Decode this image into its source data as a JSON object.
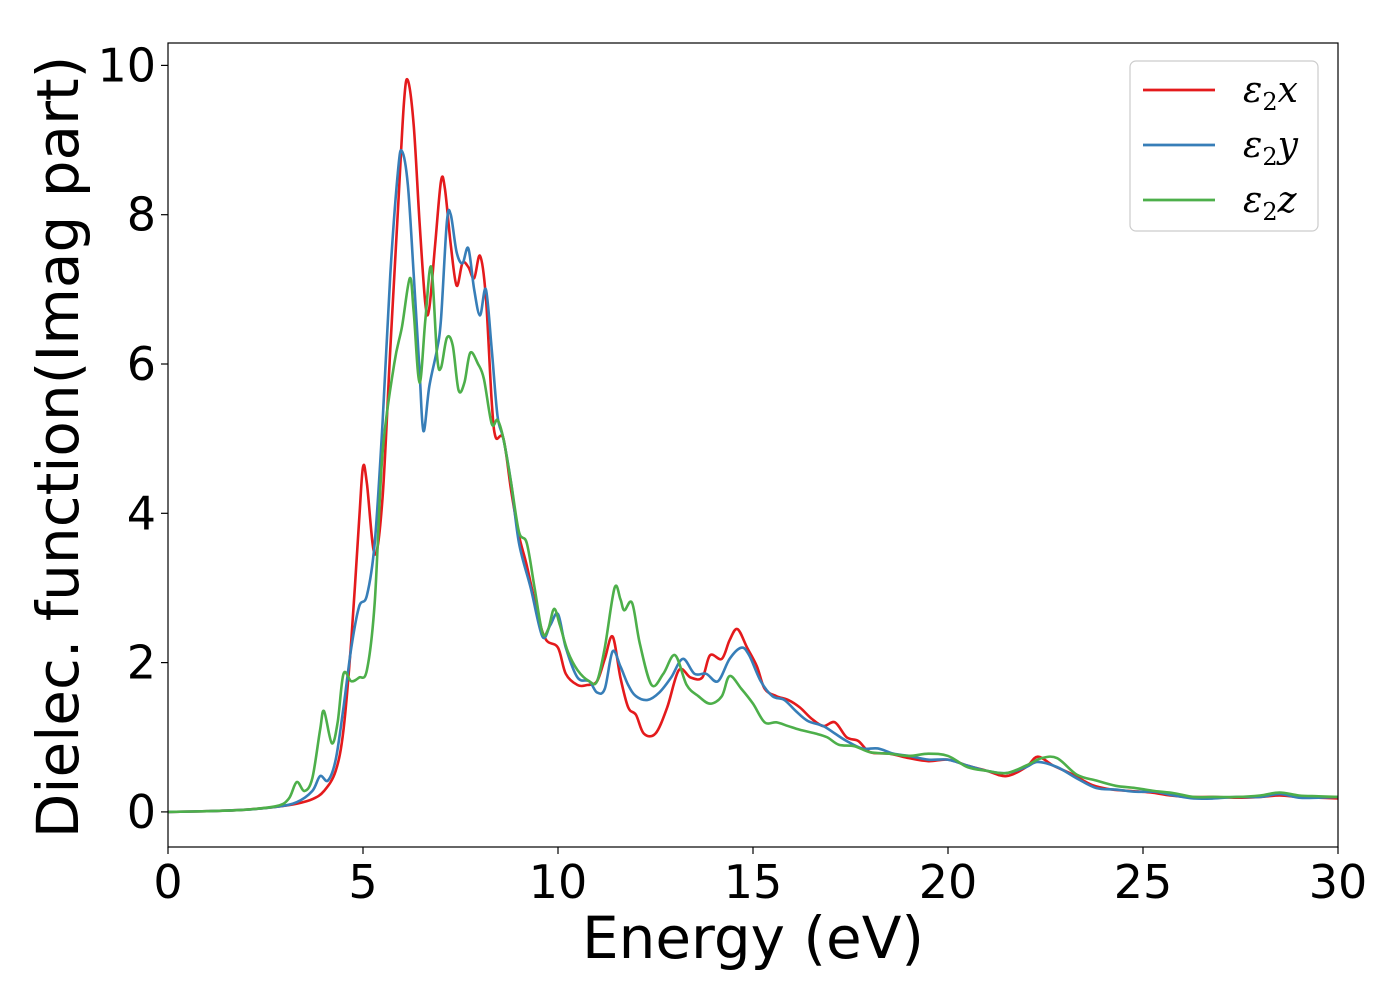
{
  "chart_data": {
    "type": "line",
    "title": "",
    "xlabel": "Energy (eV)",
    "ylabel": "Dielec. function(Imag part)",
    "xlim": [
      0,
      30
    ],
    "ylim": [
      -0.47,
      10.3
    ],
    "xticks": [
      0,
      5,
      10,
      15,
      20,
      25,
      30
    ],
    "yticks": [
      0,
      2,
      4,
      6,
      8,
      10
    ],
    "grid": false,
    "legend_position": "top-right",
    "series": [
      {
        "name": "ε₂x",
        "label_main": "ε",
        "label_sub": "2",
        "label_suffix": "x",
        "color": "#e41a1c",
        "points": [
          [
            0,
            0
          ],
          [
            1,
            0.01
          ],
          [
            2,
            0.03
          ],
          [
            2.8,
            0.07
          ],
          [
            3.3,
            0.11
          ],
          [
            3.7,
            0.17
          ],
          [
            4.0,
            0.28
          ],
          [
            4.3,
            0.55
          ],
          [
            4.5,
            1.1
          ],
          [
            4.7,
            2.3
          ],
          [
            4.9,
            3.9
          ],
          [
            5.0,
            4.62
          ],
          [
            5.1,
            4.4
          ],
          [
            5.3,
            3.45
          ],
          [
            5.5,
            4.2
          ],
          [
            5.7,
            6.2
          ],
          [
            5.9,
            8.1
          ],
          [
            6.05,
            9.5
          ],
          [
            6.15,
            9.8
          ],
          [
            6.3,
            9.2
          ],
          [
            6.45,
            7.9
          ],
          [
            6.6,
            6.8
          ],
          [
            6.7,
            6.75
          ],
          [
            6.85,
            7.6
          ],
          [
            7.0,
            8.45
          ],
          [
            7.1,
            8.35
          ],
          [
            7.25,
            7.6
          ],
          [
            7.4,
            7.05
          ],
          [
            7.55,
            7.35
          ],
          [
            7.7,
            7.3
          ],
          [
            7.85,
            7.15
          ],
          [
            8.0,
            7.45
          ],
          [
            8.15,
            6.9
          ],
          [
            8.3,
            5.5
          ],
          [
            8.4,
            5.02
          ],
          [
            8.6,
            5.0
          ],
          [
            8.8,
            4.3
          ],
          [
            9.0,
            3.7
          ],
          [
            9.2,
            3.3
          ],
          [
            9.5,
            2.6
          ],
          [
            9.7,
            2.3
          ],
          [
            10.0,
            2.2
          ],
          [
            10.2,
            1.85
          ],
          [
            10.5,
            1.7
          ],
          [
            10.75,
            1.7
          ],
          [
            11.0,
            1.75
          ],
          [
            11.2,
            2.05
          ],
          [
            11.4,
            2.35
          ],
          [
            11.6,
            1.8
          ],
          [
            11.8,
            1.4
          ],
          [
            12.0,
            1.3
          ],
          [
            12.2,
            1.05
          ],
          [
            12.5,
            1.05
          ],
          [
            12.8,
            1.4
          ],
          [
            13.1,
            1.9
          ],
          [
            13.4,
            1.8
          ],
          [
            13.7,
            1.8
          ],
          [
            13.9,
            2.1
          ],
          [
            14.2,
            2.05
          ],
          [
            14.4,
            2.3
          ],
          [
            14.6,
            2.45
          ],
          [
            14.85,
            2.2
          ],
          [
            15.1,
            1.95
          ],
          [
            15.3,
            1.65
          ],
          [
            15.6,
            1.55
          ],
          [
            15.9,
            1.5
          ],
          [
            16.2,
            1.4
          ],
          [
            16.5,
            1.25
          ],
          [
            16.8,
            1.15
          ],
          [
            17.1,
            1.2
          ],
          [
            17.4,
            1.0
          ],
          [
            17.7,
            0.95
          ],
          [
            18.0,
            0.8
          ],
          [
            18.5,
            0.78
          ],
          [
            19.0,
            0.72
          ],
          [
            19.5,
            0.68
          ],
          [
            20.0,
            0.7
          ],
          [
            20.5,
            0.62
          ],
          [
            21.0,
            0.55
          ],
          [
            21.5,
            0.48
          ],
          [
            22.0,
            0.6
          ],
          [
            22.3,
            0.74
          ],
          [
            22.7,
            0.62
          ],
          [
            23.2,
            0.5
          ],
          [
            23.7,
            0.36
          ],
          [
            24.2,
            0.3
          ],
          [
            24.7,
            0.28
          ],
          [
            25.2,
            0.26
          ],
          [
            25.7,
            0.22
          ],
          [
            26.2,
            0.2
          ],
          [
            26.8,
            0.2
          ],
          [
            27.4,
            0.19
          ],
          [
            28.0,
            0.2
          ],
          [
            28.5,
            0.22
          ],
          [
            29.0,
            0.2
          ],
          [
            29.5,
            0.19
          ],
          [
            30.0,
            0.18
          ]
        ]
      },
      {
        "name": "ε₂y",
        "label_main": "ε",
        "label_sub": "2",
        "label_suffix": "y",
        "color": "#377eb8",
        "points": [
          [
            0,
            0
          ],
          [
            1,
            0.01
          ],
          [
            2,
            0.03
          ],
          [
            2.8,
            0.07
          ],
          [
            3.3,
            0.13
          ],
          [
            3.7,
            0.28
          ],
          [
            3.9,
            0.48
          ],
          [
            4.1,
            0.42
          ],
          [
            4.3,
            0.7
          ],
          [
            4.5,
            1.4
          ],
          [
            4.7,
            2.2
          ],
          [
            4.9,
            2.75
          ],
          [
            5.1,
            2.9
          ],
          [
            5.3,
            3.6
          ],
          [
            5.5,
            5.2
          ],
          [
            5.7,
            7.2
          ],
          [
            5.9,
            8.6
          ],
          [
            6.0,
            8.85
          ],
          [
            6.15,
            8.4
          ],
          [
            6.3,
            7.2
          ],
          [
            6.45,
            5.9
          ],
          [
            6.55,
            5.1
          ],
          [
            6.7,
            5.7
          ],
          [
            6.9,
            6.2
          ],
          [
            7.0,
            6.6
          ],
          [
            7.15,
            7.9
          ],
          [
            7.25,
            8.0
          ],
          [
            7.4,
            7.5
          ],
          [
            7.55,
            7.35
          ],
          [
            7.7,
            7.55
          ],
          [
            7.85,
            7.0
          ],
          [
            8.0,
            6.65
          ],
          [
            8.15,
            7.0
          ],
          [
            8.3,
            6.2
          ],
          [
            8.45,
            5.3
          ],
          [
            8.6,
            5.0
          ],
          [
            8.8,
            4.4
          ],
          [
            9.0,
            3.6
          ],
          [
            9.3,
            3.0
          ],
          [
            9.6,
            2.35
          ],
          [
            9.8,
            2.5
          ],
          [
            10.0,
            2.65
          ],
          [
            10.2,
            2.2
          ],
          [
            10.5,
            1.8
          ],
          [
            10.8,
            1.75
          ],
          [
            11.0,
            1.6
          ],
          [
            11.2,
            1.65
          ],
          [
            11.4,
            2.15
          ],
          [
            11.6,
            1.95
          ],
          [
            11.8,
            1.7
          ],
          [
            12.0,
            1.55
          ],
          [
            12.3,
            1.5
          ],
          [
            12.6,
            1.6
          ],
          [
            12.9,
            1.8
          ],
          [
            13.2,
            2.05
          ],
          [
            13.5,
            1.85
          ],
          [
            13.8,
            1.85
          ],
          [
            14.1,
            1.75
          ],
          [
            14.4,
            2.05
          ],
          [
            14.7,
            2.2
          ],
          [
            14.9,
            2.1
          ],
          [
            15.2,
            1.75
          ],
          [
            15.5,
            1.55
          ],
          [
            15.8,
            1.5
          ],
          [
            16.1,
            1.35
          ],
          [
            16.4,
            1.22
          ],
          [
            16.8,
            1.15
          ],
          [
            17.1,
            1.05
          ],
          [
            17.4,
            0.95
          ],
          [
            17.8,
            0.85
          ],
          [
            18.2,
            0.85
          ],
          [
            18.6,
            0.78
          ],
          [
            19.0,
            0.75
          ],
          [
            19.5,
            0.7
          ],
          [
            20.0,
            0.7
          ],
          [
            20.5,
            0.62
          ],
          [
            21.0,
            0.55
          ],
          [
            21.5,
            0.52
          ],
          [
            22.0,
            0.6
          ],
          [
            22.3,
            0.67
          ],
          [
            22.8,
            0.6
          ],
          [
            23.3,
            0.45
          ],
          [
            23.8,
            0.32
          ],
          [
            24.3,
            0.3
          ],
          [
            24.8,
            0.27
          ],
          [
            25.3,
            0.27
          ],
          [
            25.8,
            0.22
          ],
          [
            26.3,
            0.18
          ],
          [
            26.8,
            0.18
          ],
          [
            27.4,
            0.2
          ],
          [
            28.0,
            0.2
          ],
          [
            28.5,
            0.24
          ],
          [
            29.0,
            0.19
          ],
          [
            29.5,
            0.19
          ],
          [
            30.0,
            0.2
          ]
        ]
      },
      {
        "name": "ε₂z",
        "label_main": "ε",
        "label_sub": "2",
        "label_suffix": "z",
        "color": "#4daf4a",
        "points": [
          [
            0,
            0
          ],
          [
            1,
            0.01
          ],
          [
            2,
            0.03
          ],
          [
            2.8,
            0.08
          ],
          [
            3.1,
            0.18
          ],
          [
            3.3,
            0.4
          ],
          [
            3.5,
            0.28
          ],
          [
            3.7,
            0.45
          ],
          [
            3.9,
            1.1
          ],
          [
            4.0,
            1.35
          ],
          [
            4.2,
            0.92
          ],
          [
            4.35,
            1.2
          ],
          [
            4.5,
            1.85
          ],
          [
            4.7,
            1.75
          ],
          [
            4.9,
            1.8
          ],
          [
            5.1,
            1.9
          ],
          [
            5.3,
            2.8
          ],
          [
            5.5,
            4.8
          ],
          [
            5.8,
            6.0
          ],
          [
            6.0,
            6.5
          ],
          [
            6.2,
            7.15
          ],
          [
            6.3,
            6.7
          ],
          [
            6.45,
            5.75
          ],
          [
            6.6,
            6.6
          ],
          [
            6.75,
            7.3
          ],
          [
            6.9,
            6.1
          ],
          [
            7.0,
            5.95
          ],
          [
            7.15,
            6.35
          ],
          [
            7.3,
            6.25
          ],
          [
            7.45,
            5.65
          ],
          [
            7.6,
            5.75
          ],
          [
            7.75,
            6.15
          ],
          [
            7.95,
            6.0
          ],
          [
            8.1,
            5.8
          ],
          [
            8.3,
            5.2
          ],
          [
            8.45,
            5.25
          ],
          [
            8.6,
            5.0
          ],
          [
            8.8,
            4.4
          ],
          [
            9.0,
            3.75
          ],
          [
            9.2,
            3.6
          ],
          [
            9.4,
            3.0
          ],
          [
            9.6,
            2.4
          ],
          [
            9.75,
            2.45
          ],
          [
            9.9,
            2.72
          ],
          [
            10.05,
            2.5
          ],
          [
            10.25,
            2.15
          ],
          [
            10.5,
            1.9
          ],
          [
            10.8,
            1.75
          ],
          [
            11.0,
            1.75
          ],
          [
            11.2,
            2.2
          ],
          [
            11.45,
            3.0
          ],
          [
            11.6,
            2.85
          ],
          [
            11.7,
            2.7
          ],
          [
            11.9,
            2.8
          ],
          [
            12.1,
            2.25
          ],
          [
            12.4,
            1.7
          ],
          [
            12.7,
            1.85
          ],
          [
            13.0,
            2.1
          ],
          [
            13.3,
            1.7
          ],
          [
            13.6,
            1.55
          ],
          [
            13.9,
            1.45
          ],
          [
            14.2,
            1.55
          ],
          [
            14.4,
            1.82
          ],
          [
            14.7,
            1.65
          ],
          [
            15.0,
            1.45
          ],
          [
            15.3,
            1.2
          ],
          [
            15.6,
            1.2
          ],
          [
            15.9,
            1.15
          ],
          [
            16.2,
            1.1
          ],
          [
            16.6,
            1.05
          ],
          [
            16.9,
            1.0
          ],
          [
            17.2,
            0.9
          ],
          [
            17.6,
            0.88
          ],
          [
            18.0,
            0.8
          ],
          [
            18.5,
            0.78
          ],
          [
            19.0,
            0.75
          ],
          [
            19.5,
            0.78
          ],
          [
            20.0,
            0.75
          ],
          [
            20.5,
            0.6
          ],
          [
            21.0,
            0.55
          ],
          [
            21.5,
            0.52
          ],
          [
            22.0,
            0.62
          ],
          [
            22.4,
            0.72
          ],
          [
            22.8,
            0.72
          ],
          [
            23.3,
            0.5
          ],
          [
            23.8,
            0.42
          ],
          [
            24.3,
            0.35
          ],
          [
            24.8,
            0.32
          ],
          [
            25.3,
            0.28
          ],
          [
            25.8,
            0.25
          ],
          [
            26.3,
            0.2
          ],
          [
            26.8,
            0.2
          ],
          [
            27.4,
            0.2
          ],
          [
            28.0,
            0.22
          ],
          [
            28.5,
            0.26
          ],
          [
            29.0,
            0.22
          ],
          [
            29.5,
            0.21
          ],
          [
            30.0,
            0.2
          ]
        ]
      }
    ]
  }
}
